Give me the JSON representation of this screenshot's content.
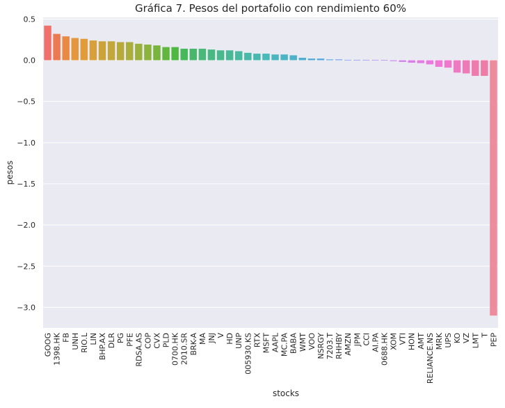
{
  "chart_data": {
    "type": "bar",
    "title": "Gráfica 7. Pesos del portafolio con rendimiento 60%",
    "xlabel": "stocks",
    "ylabel": "pesos",
    "ylim": [
      -3.25,
      0.52
    ],
    "yticks": [
      0.5,
      0.0,
      -0.5,
      -1.0,
      -1.5,
      -2.0,
      -2.5,
      -3.0
    ],
    "ytick_labels": [
      "0.5",
      "0.0",
      "−0.5",
      "−1.0",
      "−1.5",
      "−2.0",
      "−2.5",
      "−3.0"
    ],
    "grid": true,
    "background": "#eaeaf2",
    "categories": [
      "GOOG",
      "1398.HK",
      "FB",
      "UNH",
      "RIO.L",
      "LIN",
      "BHP.AX",
      "DLR",
      "PG",
      "PFE",
      "RDSA.AS",
      "COP",
      "CVX",
      "PLD",
      "0700.HK",
      "2010.SR",
      "BRK-A",
      "MA",
      "JNJ",
      "V",
      "HD",
      "UNP",
      "005930.KS",
      "RTX",
      "MSFT",
      "AAPL",
      "MC.PA",
      "BABA",
      "WMT",
      "VOO",
      "NSRGY",
      "7203.T",
      "RHHBY",
      "AMZN",
      "JPM",
      "CCI",
      "AI.PA",
      "0688.HK",
      "XOM",
      "VTI",
      "HON",
      "AMT",
      "RELIANCE.NS",
      "MRK",
      "UPS",
      "KO",
      "VZ",
      "LMT",
      "T",
      "PEP"
    ],
    "values": [
      0.42,
      0.32,
      0.29,
      0.27,
      0.26,
      0.24,
      0.23,
      0.23,
      0.22,
      0.22,
      0.2,
      0.19,
      0.18,
      0.16,
      0.16,
      0.14,
      0.14,
      0.14,
      0.13,
      0.12,
      0.12,
      0.11,
      0.09,
      0.08,
      0.08,
      0.07,
      0.07,
      0.06,
      0.03,
      0.02,
      0.02,
      0.01,
      0.01,
      0.005,
      0.005,
      0.005,
      0.005,
      0.003,
      -0.01,
      -0.02,
      -0.03,
      -0.035,
      -0.05,
      -0.08,
      -0.09,
      -0.15,
      -0.16,
      -0.19,
      -0.19,
      -3.1
    ],
    "colors": [
      "#f0716b",
      "#ed7953",
      "#e88a43",
      "#e6963c",
      "#e19b3b",
      "#d8a03b",
      "#cca33b",
      "#c3a73b",
      "#b6aa3c",
      "#a9ae3c",
      "#9cb03d",
      "#8cb33d",
      "#79b43d",
      "#62b63e",
      "#4fb842",
      "#47b859",
      "#49b76b",
      "#49b879",
      "#48b983",
      "#49b88c",
      "#48b995",
      "#49b99f",
      "#48b9a8",
      "#49b9b0",
      "#49b9b9",
      "#4bb6bf",
      "#4cb4c3",
      "#4eb1c9",
      "#51aed1",
      "#52a9d8",
      "#54a5df",
      "#5aa1e5",
      "#6d9ceb",
      "#7e98ef",
      "#8f93f0",
      "#9e8ff0",
      "#ad8bf0",
      "#bb86f0",
      "#c682ef",
      "#d07fed",
      "#da7eea",
      "#e27be6",
      "#e979de",
      "#ef77d6",
      "#ee78cc",
      "#ee7ac2",
      "#ee7bb8",
      "#ef7bae",
      "#ef7ca5",
      "#ee8b9c"
    ]
  }
}
